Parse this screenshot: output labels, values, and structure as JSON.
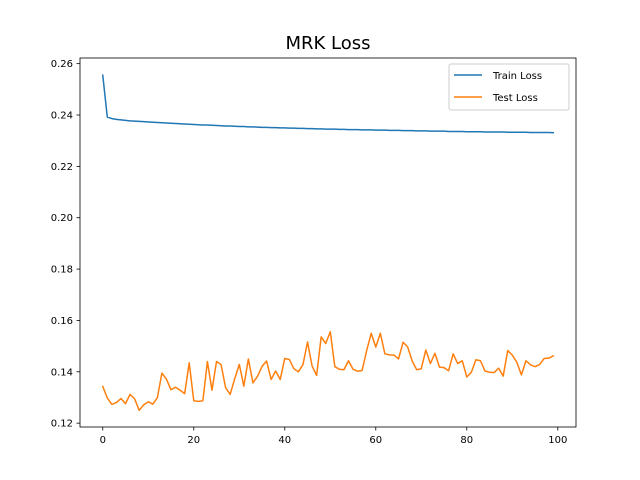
{
  "chart_data": {
    "type": "line",
    "title": "MRK Loss",
    "xlabel": "",
    "ylabel": "",
    "xlim": [
      -5,
      104
    ],
    "ylim": [
      0.1185,
      0.2622
    ],
    "xticks": [
      0,
      20,
      40,
      60,
      80,
      100
    ],
    "yticks": [
      0.12,
      0.14,
      0.16,
      0.18,
      0.2,
      0.22,
      0.24,
      0.26
    ],
    "ytick_labels": [
      "0.12",
      "0.14",
      "0.16",
      "0.18",
      "0.20",
      "0.22",
      "0.24",
      "0.26"
    ],
    "xtick_labels": [
      "0",
      "20",
      "40",
      "60",
      "80",
      "100"
    ],
    "grid": false,
    "legend_position": "top-right",
    "series": [
      {
        "name": "Train Loss",
        "color": "#1f77b4",
        "x": [
          0,
          1,
          2,
          3,
          4,
          5,
          6,
          7,
          8,
          9,
          10,
          11,
          12,
          13,
          14,
          15,
          16,
          17,
          18,
          19,
          20,
          21,
          22,
          23,
          24,
          25,
          26,
          27,
          28,
          29,
          30,
          31,
          32,
          33,
          34,
          35,
          36,
          37,
          38,
          39,
          40,
          41,
          42,
          43,
          44,
          45,
          46,
          47,
          48,
          49,
          50,
          51,
          52,
          53,
          54,
          55,
          56,
          57,
          58,
          59,
          60,
          61,
          62,
          63,
          64,
          65,
          66,
          67,
          68,
          69,
          70,
          71,
          72,
          73,
          74,
          75,
          76,
          77,
          78,
          79,
          80,
          81,
          82,
          83,
          84,
          85,
          86,
          87,
          88,
          89,
          90,
          91,
          92,
          93,
          94,
          95,
          96,
          97,
          98,
          99
        ],
        "values": [
          0.2555,
          0.2392,
          0.2386,
          0.2383,
          0.2381,
          0.2379,
          0.2377,
          0.2376,
          0.2375,
          0.2374,
          0.2373,
          0.2372,
          0.2371,
          0.237,
          0.2369,
          0.2368,
          0.2367,
          0.2366,
          0.2365,
          0.2364,
          0.2363,
          0.2362,
          0.2361,
          0.2361,
          0.236,
          0.2359,
          0.2358,
          0.2357,
          0.2357,
          0.2356,
          0.2355,
          0.2355,
          0.2354,
          0.2354,
          0.2353,
          0.2352,
          0.2352,
          0.2351,
          0.2351,
          0.235,
          0.235,
          0.2349,
          0.2349,
          0.2348,
          0.2348,
          0.2347,
          0.2347,
          0.2346,
          0.2346,
          0.2345,
          0.2345,
          0.2345,
          0.2344,
          0.2344,
          0.2343,
          0.2343,
          0.2343,
          0.2342,
          0.2342,
          0.2342,
          0.2341,
          0.2341,
          0.2341,
          0.234,
          0.234,
          0.234,
          0.2339,
          0.2339,
          0.2339,
          0.2338,
          0.2338,
          0.2338,
          0.2337,
          0.2337,
          0.2337,
          0.2337,
          0.2336,
          0.2336,
          0.2336,
          0.2336,
          0.2335,
          0.2335,
          0.2335,
          0.2335,
          0.2334,
          0.2334,
          0.2334,
          0.2334,
          0.2334,
          0.2333,
          0.2333,
          0.2333,
          0.2333,
          0.2333,
          0.2332,
          0.2332,
          0.2332,
          0.2332,
          0.2332,
          0.2331
        ]
      },
      {
        "name": "Test Loss",
        "color": "#ff7f0e",
        "x": [
          0,
          1,
          2,
          3,
          4,
          5,
          6,
          7,
          8,
          9,
          10,
          11,
          12,
          13,
          14,
          15,
          16,
          17,
          18,
          19,
          20,
          21,
          22,
          23,
          24,
          25,
          26,
          27,
          28,
          29,
          30,
          31,
          32,
          33,
          34,
          35,
          36,
          37,
          38,
          39,
          40,
          41,
          42,
          43,
          44,
          45,
          46,
          47,
          48,
          49,
          50,
          51,
          52,
          53,
          54,
          55,
          56,
          57,
          58,
          59,
          60,
          61,
          62,
          63,
          64,
          65,
          66,
          67,
          68,
          69,
          70,
          71,
          72,
          73,
          74,
          75,
          76,
          77,
          78,
          79,
          80,
          81,
          82,
          83,
          84,
          85,
          86,
          87,
          88,
          89,
          90,
          91,
          92,
          93,
          94,
          95,
          96,
          97,
          98,
          99
        ],
        "values": [
          0.1343,
          0.1298,
          0.1273,
          0.128,
          0.1296,
          0.1276,
          0.1312,
          0.1295,
          0.125,
          0.1271,
          0.1283,
          0.1274,
          0.1299,
          0.1395,
          0.1371,
          0.133,
          0.134,
          0.1328,
          0.1315,
          0.1435,
          0.1287,
          0.1285,
          0.1287,
          0.144,
          0.1328,
          0.144,
          0.1428,
          0.1338,
          0.1312,
          0.1373,
          0.1429,
          0.1344,
          0.145,
          0.1357,
          0.1382,
          0.1421,
          0.1442,
          0.137,
          0.1403,
          0.137,
          0.1452,
          0.1448,
          0.1412,
          0.14,
          0.1428,
          0.1516,
          0.1423,
          0.1386,
          0.1536,
          0.151,
          0.1556,
          0.142,
          0.141,
          0.1408,
          0.1443,
          0.141,
          0.1402,
          0.1405,
          0.1483,
          0.155,
          0.1496,
          0.155,
          0.147,
          0.1466,
          0.1465,
          0.145,
          0.1515,
          0.1497,
          0.1442,
          0.1408,
          0.1412,
          0.1485,
          0.1432,
          0.1472,
          0.1418,
          0.1416,
          0.1404,
          0.147,
          0.1432,
          0.1443,
          0.138,
          0.1398,
          0.1447,
          0.1443,
          0.1403,
          0.1398,
          0.1397,
          0.1414,
          0.1383,
          0.1483,
          0.1465,
          0.1437,
          0.1388,
          0.1443,
          0.1427,
          0.142,
          0.1428,
          0.1452,
          0.1453,
          0.1462
        ]
      }
    ]
  }
}
